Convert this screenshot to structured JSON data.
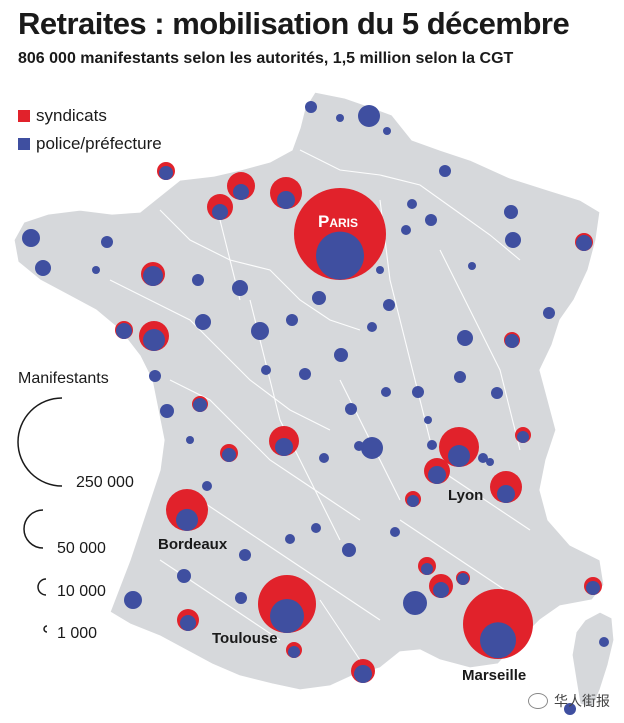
{
  "header": {
    "title": "Retraites : mobilisation du 5 décembre",
    "subtitle": "806 000 manifestants selon les autorités, 1,5 million selon la CGT"
  },
  "legend": {
    "items": [
      {
        "label": "syndicats",
        "color": "#e1222b"
      },
      {
        "label": "police/préfecture",
        "color": "#3f4fa0"
      }
    ]
  },
  "size_legend": {
    "title": "Manifestants",
    "entries": [
      {
        "label": "250 000",
        "value": 250000
      },
      {
        "label": "50 000",
        "value": 50000
      },
      {
        "label": "10 000",
        "value": 10000
      },
      {
        "label": "1 000",
        "value": 1000
      }
    ]
  },
  "cities": {
    "paris": "Paris",
    "lyon": "Lyon",
    "bordeaux": "Bordeaux",
    "toulouse": "Toulouse",
    "marseille": "Marseille"
  },
  "colors": {
    "syndicats": "#e1222b",
    "police": "#3f4fa0",
    "land": "#d6d8db",
    "border": "#ffffff"
  },
  "watermark": "华人街报"
}
